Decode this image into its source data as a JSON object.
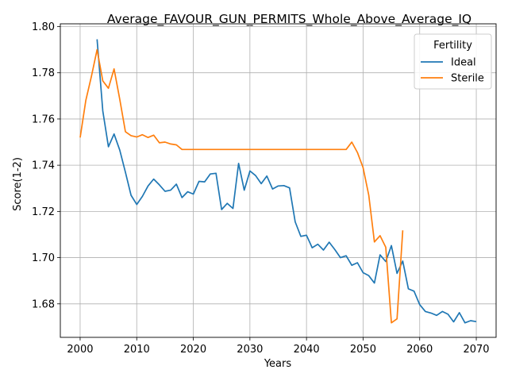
{
  "chart_data": {
    "type": "line",
    "title": "Average_FAVOUR_GUN_PERMITS_Whole_Above_Average_IQ",
    "xlabel": "Years",
    "ylabel": "Score(1-2)",
    "xlim": [
      1996.5,
      2073.5
    ],
    "ylim": [
      1.6655,
      1.8012
    ],
    "xticks": [
      2000,
      2010,
      2020,
      2030,
      2040,
      2050,
      2060,
      2070
    ],
    "xtick_labels": [
      "2000",
      "2010",
      "2020",
      "2030",
      "2040",
      "2050",
      "2060",
      "2070"
    ],
    "yticks": [
      1.68,
      1.7,
      1.72,
      1.74,
      1.76,
      1.78,
      1.8
    ],
    "ytick_labels": [
      "1.68",
      "1.70",
      "1.72",
      "1.74",
      "1.76",
      "1.78",
      "1.80"
    ],
    "grid": true,
    "legend": {
      "title": "Fertility",
      "placement": "top-right"
    },
    "series": [
      {
        "name": "Ideal",
        "color": "#1f77b4",
        "x": [
          2003,
          2004,
          2005,
          2006,
          2007,
          2008,
          2009,
          2010,
          2011,
          2012,
          2013,
          2014,
          2015,
          2016,
          2017,
          2018,
          2019,
          2020,
          2021,
          2022,
          2023,
          2024,
          2025,
          2026,
          2027,
          2028,
          2029,
          2030,
          2031,
          2032,
          2033,
          2034,
          2035,
          2036,
          2037,
          2038,
          2039,
          2040,
          2041,
          2042,
          2043,
          2044,
          2045,
          2046,
          2047,
          2048,
          2049,
          2050,
          2051,
          2052,
          2053,
          2054,
          2055,
          2056,
          2057,
          2058,
          2059,
          2060,
          2061,
          2062,
          2063,
          2064,
          2065,
          2066,
          2067,
          2068,
          2069,
          2070
        ],
        "y": [
          1.7945,
          1.7635,
          1.748,
          1.7535,
          1.7465,
          1.737,
          1.727,
          1.723,
          1.7265,
          1.731,
          1.734,
          1.7315,
          1.7287,
          1.7292,
          1.7318,
          1.726,
          1.7285,
          1.7275,
          1.733,
          1.7328,
          1.7362,
          1.7365,
          1.7208,
          1.7235,
          1.7213,
          1.7408,
          1.7292,
          1.7375,
          1.7355,
          1.732,
          1.7353,
          1.7297,
          1.731,
          1.7312,
          1.7302,
          1.7155,
          1.7092,
          1.7097,
          1.7043,
          1.7058,
          1.7033,
          1.7067,
          1.7035,
          1.7,
          1.7008,
          1.6967,
          1.6978,
          1.6935,
          1.6922,
          1.689,
          1.7012,
          1.6983,
          1.7052,
          1.6932,
          1.6985,
          1.6865,
          1.6855,
          1.6797,
          1.6767,
          1.676,
          1.675,
          1.6767,
          1.6755,
          1.6722,
          1.6762,
          1.6718,
          1.6727,
          1.6723
        ]
      },
      {
        "name": "Sterile",
        "color": "#ff7f0e",
        "x": [
          2000,
          2001,
          2002,
          2003,
          2004,
          2005,
          2006,
          2007,
          2008,
          2009,
          2010,
          2011,
          2012,
          2013,
          2014,
          2015,
          2016,
          2017,
          2018,
          2019,
          2020,
          2021,
          2022,
          2023,
          2024,
          2025,
          2026,
          2027,
          2028,
          2029,
          2030,
          2031,
          2032,
          2033,
          2034,
          2035,
          2036,
          2037,
          2038,
          2039,
          2040,
          2041,
          2042,
          2043,
          2044,
          2045,
          2046,
          2047,
          2048,
          2049,
          2050,
          2051,
          2052,
          2053,
          2054,
          2055,
          2056,
          2057
        ],
        "y": [
          1.752,
          1.768,
          1.7785,
          1.79,
          1.7765,
          1.7733,
          1.7817,
          1.7685,
          1.7545,
          1.7528,
          1.7522,
          1.7532,
          1.752,
          1.753,
          1.7497,
          1.75,
          1.7492,
          1.7488,
          1.7468,
          1.7468,
          1.7468,
          1.7468,
          1.7468,
          1.7468,
          1.7468,
          1.7468,
          1.7468,
          1.7468,
          1.7468,
          1.7468,
          1.7468,
          1.7468,
          1.7468,
          1.7468,
          1.7468,
          1.7468,
          1.7468,
          1.7468,
          1.7468,
          1.7468,
          1.7468,
          1.7468,
          1.7468,
          1.7468,
          1.7468,
          1.7468,
          1.7468,
          1.7468,
          1.75,
          1.7455,
          1.739,
          1.727,
          1.7068,
          1.7095,
          1.7045,
          1.6718,
          1.6735,
          1.7118
        ]
      }
    ]
  }
}
